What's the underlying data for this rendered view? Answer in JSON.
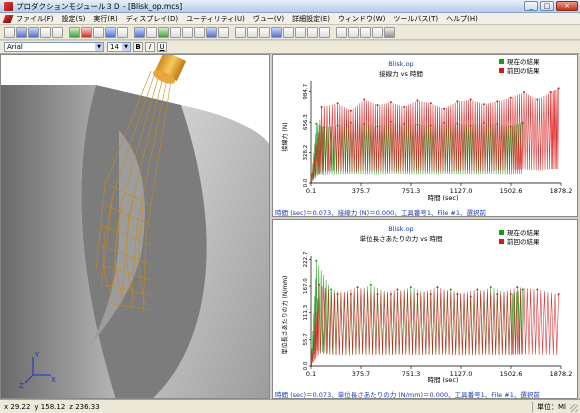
{
  "window": {
    "title": "プロダクションモジュール３Ｄ - [Blisk_op.mcs]",
    "minimize": "_",
    "maximize": "□",
    "close": "×"
  },
  "menu": [
    "ファイル(F)",
    "設定(S)",
    "実行(R)",
    "ディスプレイ(D)",
    "ユーティリティ(U)",
    "ヴュー(V)",
    "詳細設定(E)",
    "ウィンドウ(W)",
    "ツールバス(T)",
    "ヘルプ(H)"
  ],
  "fontbar": {
    "font": "Arial",
    "size": "14",
    "bold": "B",
    "italic": "I",
    "underline": "U"
  },
  "view3d": {
    "axis_y": "Y",
    "axis_x": "X",
    "axis_z": "Z",
    "tool_label": "F"
  },
  "chart1": {
    "file": "Blisk.op",
    "title": "接線力 vs 時間",
    "ylabel": "接線力 (N)",
    "xlabel": "時間 (sec)",
    "legend_current": "現在の結果",
    "legend_previous": "前回の結果",
    "status": "時間 (sec)＝0.073、接線力 (N)＝0.000、工具番号1、File #1、選択前",
    "colors": {
      "current": "#1a9a1a",
      "previous": "#d81818"
    }
  },
  "chart2": {
    "file": "Blisk.op",
    "title": "単位長さあたりの力 vs 時間",
    "ylabel": "単位長さあたりの力 (N/mm)",
    "xlabel": "時間 (sec)",
    "legend_current": "現在の結果",
    "legend_previous": "前回の結果",
    "status": "時間 (sec)＝0.073、単位長さあたりの力 (N/mm)＝0.000、工具番号1、File #1、選択前",
    "colors": {
      "current": "#1a9a1a",
      "previous": "#d81818"
    }
  },
  "chart_data": [
    {
      "type": "line",
      "title": "接線力 vs 時間",
      "xlabel": "時間 (sec)",
      "ylabel": "接線力 (N)",
      "x_ticks": [
        "0.1",
        "375.7",
        "751.3",
        "1127.0",
        "1502.6",
        "1878.2"
      ],
      "y_ticks": [
        "0.0",
        "328.2",
        "656.3",
        "984.7"
      ],
      "xlim": [
        0.1,
        1878.2
      ],
      "ylim": [
        0,
        1100
      ],
      "series": [
        {
          "name": "現在の結果",
          "color": "#1a9a1a",
          "points": [
            [
              0.1,
              0
            ],
            [
              40,
              640
            ],
            [
              100,
              600
            ],
            [
              200,
              620
            ],
            [
              300,
              650
            ],
            [
              400,
              640
            ],
            [
              500,
              610
            ],
            [
              600,
              660
            ],
            [
              700,
              640
            ],
            [
              800,
              630
            ],
            [
              900,
              620
            ],
            [
              1000,
              650
            ],
            [
              1100,
              640
            ],
            [
              1200,
              620
            ],
            [
              1300,
              650
            ],
            [
              1400,
              640
            ],
            [
              1500,
              610
            ],
            [
              1590,
              650
            ]
          ]
        },
        {
          "name": "前回の結果",
          "color": "#d81818",
          "points": [
            [
              0.1,
              0
            ],
            [
              80,
              820
            ],
            [
              200,
              860
            ],
            [
              300,
              780
            ],
            [
              400,
              900
            ],
            [
              500,
              840
            ],
            [
              600,
              870
            ],
            [
              700,
              820
            ],
            [
              800,
              890
            ],
            [
              900,
              860
            ],
            [
              1000,
              800
            ],
            [
              1100,
              880
            ],
            [
              1200,
              900
            ],
            [
              1300,
              850
            ],
            [
              1400,
              880
            ],
            [
              1500,
              920
            ],
            [
              1600,
              980
            ],
            [
              1700,
              900
            ],
            [
              1800,
              980
            ],
            [
              1860,
              1020
            ]
          ]
        }
      ]
    },
    {
      "type": "line",
      "title": "単位長さあたりの力 vs 時間",
      "xlabel": "時間 (sec)",
      "ylabel": "単位長さあたりの力 (N/mm)",
      "x_ticks": [
        "0.1",
        "375.7",
        "751.3",
        "1127.0",
        "1502.6",
        "1878.2"
      ],
      "y_ticks": [
        "0.0",
        "55.7",
        "111.3",
        "167.0",
        "222.7"
      ],
      "xlim": [
        0.1,
        1878.2
      ],
      "ylim": [
        0,
        230
      ],
      "series": [
        {
          "name": "現在の結果",
          "color": "#1a9a1a",
          "points": [
            [
              0.1,
              0
            ],
            [
              40,
              220
            ],
            [
              150,
              160
            ],
            [
              300,
              150
            ],
            [
              450,
              170
            ],
            [
              600,
              150
            ],
            [
              750,
              165
            ],
            [
              900,
              150
            ],
            [
              1050,
              160
            ],
            [
              1200,
              145
            ],
            [
              1350,
              165
            ],
            [
              1500,
              150
            ],
            [
              1590,
              160
            ]
          ]
        },
        {
          "name": "前回の結果",
          "color": "#d81818",
          "points": [
            [
              0.1,
              0
            ],
            [
              60,
              170
            ],
            [
              200,
              150
            ],
            [
              350,
              165
            ],
            [
              500,
              150
            ],
            [
              650,
              160
            ],
            [
              800,
              150
            ],
            [
              950,
              165
            ],
            [
              1100,
              150
            ],
            [
              1250,
              160
            ],
            [
              1400,
              150
            ],
            [
              1550,
              165
            ],
            [
              1700,
              160
            ],
            [
              1860,
              150
            ]
          ]
        }
      ]
    }
  ],
  "status": {
    "x": "x 29.22",
    "y": "y 158.12",
    "z": "z 236.33",
    "unit": "単位：Ml"
  }
}
